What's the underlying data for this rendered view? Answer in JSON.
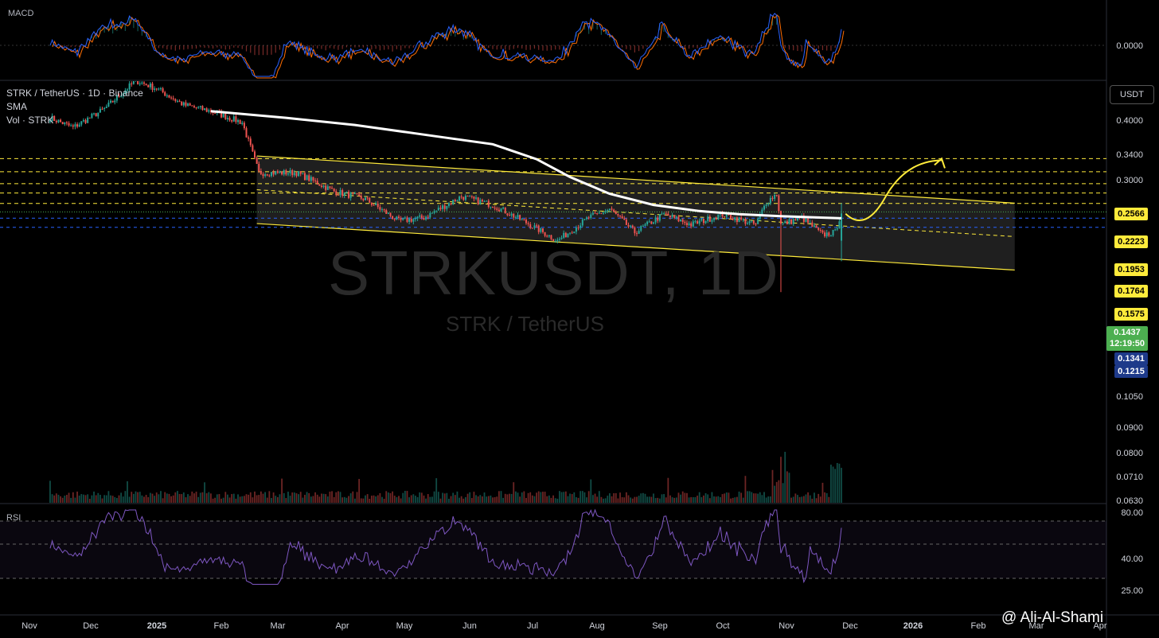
{
  "panes": {
    "macd_label": "MACD",
    "macd_zero": "0.0000",
    "rsi_label": "RSI",
    "rsi_ticks": [
      "80.00",
      "40.00",
      "25.00"
    ]
  },
  "legend": {
    "symbol_line": "STRK / TetherUS · 1D · Binance",
    "sma": "SMA",
    "vol": "Vol · STRK"
  },
  "watermark": {
    "main": "STRKUSDT, 1D",
    "sub": "STRK / TetherUS"
  },
  "currency": "USDT",
  "author": "@ Ali-Al-Shami",
  "colors": {
    "up": "#26a69a",
    "down": "#ef5350",
    "yellow": "#ffeb3b",
    "sma": "#ffffff",
    "rsi": "#7e57c2",
    "macd": "#2962ff",
    "signal": "#ff6d00"
  },
  "chart_data": {
    "type": "candlestick",
    "title": "STRK / TetherUS · 1D · Binance",
    "scale": "log",
    "price_axis_ticks": [
      "0.4000",
      "0.3400",
      "0.3000",
      "0.1050",
      "0.0900",
      "0.0800",
      "0.0710",
      "0.0630"
    ],
    "x_ticks": [
      "Nov",
      "Dec",
      "2025",
      "Feb",
      "Mar",
      "Apr",
      "May",
      "Jun",
      "Jul",
      "Aug",
      "Sep",
      "Oct",
      "Nov",
      "Dec",
      "2026",
      "Feb",
      "Mar",
      "Apr"
    ],
    "resistance_levels": [
      "0.2566",
      "0.2223",
      "0.1953",
      "0.1764",
      "0.1575"
    ],
    "current_price": "0.1437",
    "countdown": "12:19:50",
    "support_levels": [
      "0.1341",
      "0.1215"
    ],
    "anchors": [
      [
        "2024-10-25",
        0.4
      ],
      [
        "2024-11-05",
        0.36
      ],
      [
        "2024-11-20",
        0.44
      ],
      [
        "2024-12-05",
        0.6
      ],
      [
        "2024-12-15",
        0.55
      ],
      [
        "2024-12-28",
        0.46
      ],
      [
        "2025-01-10",
        0.43
      ],
      [
        "2025-01-25",
        0.38
      ],
      [
        "2025-02-02",
        0.22
      ],
      [
        "2025-02-20",
        0.22
      ],
      [
        "2025-03-10",
        0.18
      ],
      [
        "2025-03-25",
        0.165
      ],
      [
        "2025-04-10",
        0.13
      ],
      [
        "2025-04-22",
        0.135
      ],
      [
        "2025-05-10",
        0.17
      ],
      [
        "2025-05-25",
        0.155
      ],
      [
        "2025-06-10",
        0.128
      ],
      [
        "2025-06-25",
        0.105
      ],
      [
        "2025-07-10",
        0.135
      ],
      [
        "2025-07-20",
        0.148
      ],
      [
        "2025-08-01",
        0.115
      ],
      [
        "2025-08-15",
        0.14
      ],
      [
        "2025-08-28",
        0.125
      ],
      [
        "2025-09-12",
        0.14
      ],
      [
        "2025-09-28",
        0.125
      ],
      [
        "2025-10-03",
        0.16
      ],
      [
        "2025-10-08",
        0.175
      ],
      [
        "2025-10-10",
        0.125
      ],
      [
        "2025-10-20",
        0.135
      ],
      [
        "2025-10-30",
        0.112
      ],
      [
        "2025-11-05",
        0.115
      ],
      [
        "2025-11-08",
        0.1437
      ]
    ]
  }
}
